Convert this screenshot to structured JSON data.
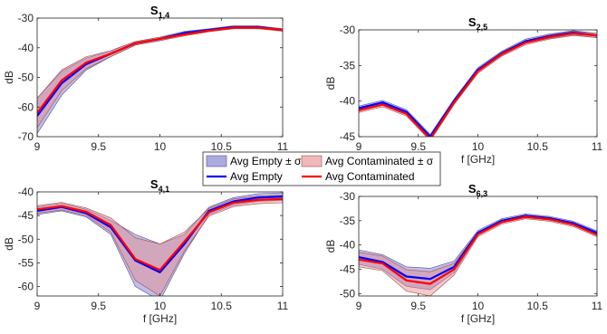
{
  "legend": {
    "items": [
      {
        "label": "Avg Empty ± σ",
        "kind": "band",
        "color": "#aaaadd"
      },
      {
        "label": "Avg Contaminated ± σ",
        "kind": "band",
        "color": "#f0b8b8"
      },
      {
        "label": "Avg Empty",
        "kind": "line",
        "color": "#0000ff"
      },
      {
        "label": "Avg Contaminated",
        "kind": "line",
        "color": "#ff0000"
      }
    ]
  },
  "colors": {
    "empty_line": "#0000ff",
    "contam_line": "#ff0000",
    "empty_band": "#7070cc",
    "contam_band": "#e88888"
  },
  "chart_data": [
    {
      "type": "line",
      "title": "S",
      "title_sub": "1,4",
      "xlabel": "",
      "ylabel": "dB",
      "xlim": [
        9,
        11
      ],
      "ylim": [
        -70,
        -30
      ],
      "xticks": [
        9,
        9.5,
        10,
        10.5,
        11
      ],
      "yticks": [
        -70,
        -60,
        -50,
        -40,
        -30
      ],
      "x": [
        9,
        9.2,
        9.4,
        9.6,
        9.8,
        10,
        10.2,
        10.4,
        10.6,
        10.8,
        11
      ],
      "series": [
        {
          "name": "Avg Empty",
          "values": [
            -63,
            -52,
            -45.5,
            -42,
            -38.5,
            -37,
            -35,
            -34,
            -33,
            -33,
            -34
          ],
          "sigma": [
            6,
            4,
            2,
            1,
            0.6,
            0.6,
            0.5,
            0.4,
            0.4,
            0.4,
            0.4
          ]
        },
        {
          "name": "Avg Contaminated",
          "values": [
            -62,
            -51,
            -45,
            -42,
            -38.5,
            -37,
            -35.5,
            -34.2,
            -33.2,
            -33.2,
            -34
          ],
          "sigma": [
            5,
            3.5,
            2,
            1,
            0.6,
            0.6,
            0.5,
            0.4,
            0.4,
            0.4,
            0.4
          ]
        }
      ]
    },
    {
      "type": "line",
      "title": "S",
      "title_sub": "2,5",
      "xlabel": "f [GHz]",
      "ylabel": "dB",
      "xlim": [
        9,
        11
      ],
      "ylim": [
        -45,
        -30
      ],
      "xticks": [
        9,
        9.5,
        10,
        10.5,
        11
      ],
      "yticks": [
        -45,
        -40,
        -35,
        -30
      ],
      "x": [
        9,
        9.2,
        9.4,
        9.6,
        9.8,
        10,
        10.2,
        10.4,
        10.6,
        10.8,
        11
      ],
      "series": [
        {
          "name": "Avg Empty",
          "values": [
            -41,
            -40.2,
            -41.5,
            -45,
            -40,
            -35.6,
            -33.3,
            -31.6,
            -30.9,
            -30.4,
            -30.8
          ],
          "sigma": [
            0.3,
            0.3,
            0.3,
            0.3,
            0.3,
            0.3,
            0.3,
            0.3,
            0.3,
            0.3,
            0.3
          ]
        },
        {
          "name": "Avg Contaminated",
          "values": [
            -41.3,
            -40.5,
            -41.8,
            -45.3,
            -40.2,
            -35.8,
            -33.4,
            -31.8,
            -31,
            -30.5,
            -30.8
          ],
          "sigma": [
            0.3,
            0.3,
            0.3,
            0.3,
            0.3,
            0.3,
            0.3,
            0.3,
            0.3,
            0.3,
            0.3
          ]
        }
      ]
    },
    {
      "type": "line",
      "title": "S",
      "title_sub": "4,1",
      "xlabel": "f [GHz]",
      "ylabel": "dB",
      "xlim": [
        9,
        11
      ],
      "ylim": [
        -62,
        -40
      ],
      "xticks": [
        9,
        9.5,
        10,
        10.5,
        11
      ],
      "yticks": [
        -60,
        -55,
        -50,
        -45,
        -40
      ],
      "x": [
        9,
        9.2,
        9.4,
        9.6,
        9.8,
        10,
        10.2,
        10.4,
        10.6,
        10.8,
        11
      ],
      "series": [
        {
          "name": "Avg Empty",
          "values": [
            -44,
            -43.2,
            -44.5,
            -47.5,
            -54.5,
            -57,
            -51,
            -44,
            -42,
            -41.2,
            -41
          ],
          "sigma": [
            0.8,
            0.8,
            0.8,
            1.5,
            5.5,
            6,
            2,
            0.8,
            0.8,
            0.8,
            0.8
          ]
        },
        {
          "name": "Avg Contaminated",
          "values": [
            -43.7,
            -43,
            -44.2,
            -47,
            -54.2,
            -56.5,
            -50.5,
            -44.3,
            -42.3,
            -41.7,
            -41.5
          ],
          "sigma": [
            0.8,
            0.8,
            0.8,
            1.5,
            4.5,
            5.5,
            2,
            0.8,
            0.8,
            0.8,
            0.8
          ]
        }
      ]
    },
    {
      "type": "line",
      "title": "S",
      "title_sub": "6,3",
      "xlabel": "f [GHz]",
      "ylabel": "dB",
      "xlim": [
        9,
        11
      ],
      "ylim": [
        -50.5,
        -30
      ],
      "xticks": [
        9,
        9.5,
        10,
        10.5,
        11
      ],
      "yticks": [
        -50,
        -45,
        -40,
        -35,
        -30
      ],
      "x": [
        9,
        9.2,
        9.4,
        9.6,
        9.8,
        10,
        10.2,
        10.4,
        10.6,
        10.8,
        11
      ],
      "series": [
        {
          "name": "Avg Empty",
          "values": [
            -42.5,
            -43.5,
            -46.5,
            -47,
            -44.5,
            -37.5,
            -35,
            -34,
            -34.5,
            -35.5,
            -37.5
          ],
          "sigma": [
            1.5,
            1.5,
            2,
            2.2,
            1.2,
            0.5,
            0.4,
            0.4,
            0.4,
            0.4,
            0.4
          ]
        },
        {
          "name": "Avg Contaminated",
          "values": [
            -43,
            -43.8,
            -47.3,
            -48,
            -45,
            -37.8,
            -35.3,
            -34.2,
            -34.7,
            -35.8,
            -37.9
          ],
          "sigma": [
            1.5,
            1.5,
            2.2,
            2.5,
            1.2,
            0.5,
            0.4,
            0.4,
            0.4,
            0.4,
            0.4
          ]
        }
      ]
    }
  ]
}
